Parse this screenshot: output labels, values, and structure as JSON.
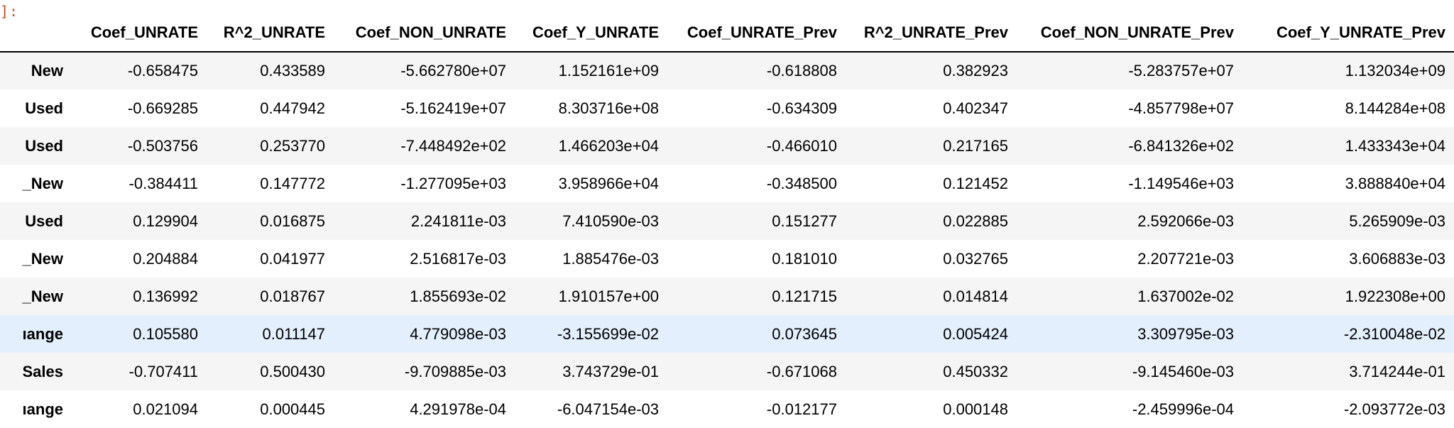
{
  "cell_prompt": "]:",
  "table": {
    "columns": [
      "Coef_UNRATE",
      "R^2_UNRATE",
      "Coef_NON_UNRATE",
      "Coef_Y_UNRATE",
      "Coef_UNRATE_Prev",
      "R^2_UNRATE_Prev",
      "Coef_NON_UNRATE_Prev",
      "Coef_Y_UNRATE_Prev"
    ],
    "rows": [
      {
        "index": "New",
        "cells": [
          "-0.658475",
          "0.433589",
          "-5.662780e+07",
          "1.152161e+09",
          "-0.618808",
          "0.382923",
          "-5.283757e+07",
          "1.132034e+09"
        ]
      },
      {
        "index": "Used",
        "cells": [
          "-0.669285",
          "0.447942",
          "-5.162419e+07",
          "8.303716e+08",
          "-0.634309",
          "0.402347",
          "-4.857798e+07",
          "8.144284e+08"
        ]
      },
      {
        "index": "Used",
        "cells": [
          "-0.503756",
          "0.253770",
          "-7.448492e+02",
          "1.466203e+04",
          "-0.466010",
          "0.217165",
          "-6.841326e+02",
          "1.433343e+04"
        ]
      },
      {
        "index": "_New",
        "cells": [
          "-0.384411",
          "0.147772",
          "-1.277095e+03",
          "3.958966e+04",
          "-0.348500",
          "0.121452",
          "-1.149546e+03",
          "3.888840e+04"
        ]
      },
      {
        "index": "Used",
        "cells": [
          "0.129904",
          "0.016875",
          "2.241811e-03",
          "7.410590e-03",
          "0.151277",
          "0.022885",
          "2.592066e-03",
          "5.265909e-03"
        ]
      },
      {
        "index": "_New",
        "cells": [
          "0.204884",
          "0.041977",
          "2.516817e-03",
          "1.885476e-03",
          "0.181010",
          "0.032765",
          "2.207721e-03",
          "3.606883e-03"
        ]
      },
      {
        "index": "_New",
        "cells": [
          "0.136992",
          "0.018767",
          "1.855693e-02",
          "1.910157e+00",
          "0.121715",
          "0.014814",
          "1.637002e-02",
          "1.922308e+00"
        ]
      },
      {
        "index": "ıange",
        "cells": [
          "0.105580",
          "0.011147",
          "4.779098e-03",
          "-3.155699e-02",
          "0.073645",
          "0.005424",
          "3.309795e-03",
          "-2.310048e-02"
        ],
        "highlighted": true
      },
      {
        "index": "Sales",
        "cells": [
          "-0.707411",
          "0.500430",
          "-9.709885e-03",
          "3.743729e-01",
          "-0.671068",
          "0.450332",
          "-9.145460e-03",
          "3.714244e-01"
        ]
      },
      {
        "index": "ıange",
        "cells": [
          "0.021094",
          "0.000445",
          "4.291978e-04",
          "-6.047154e-03",
          "-0.012177",
          "0.000148",
          "-2.459996e-04",
          "-2.093772e-03"
        ]
      }
    ]
  },
  "colors": {
    "prompt": "#d84315",
    "row_stripe": "#f5f5f5",
    "row_hover": "#e3effc"
  }
}
